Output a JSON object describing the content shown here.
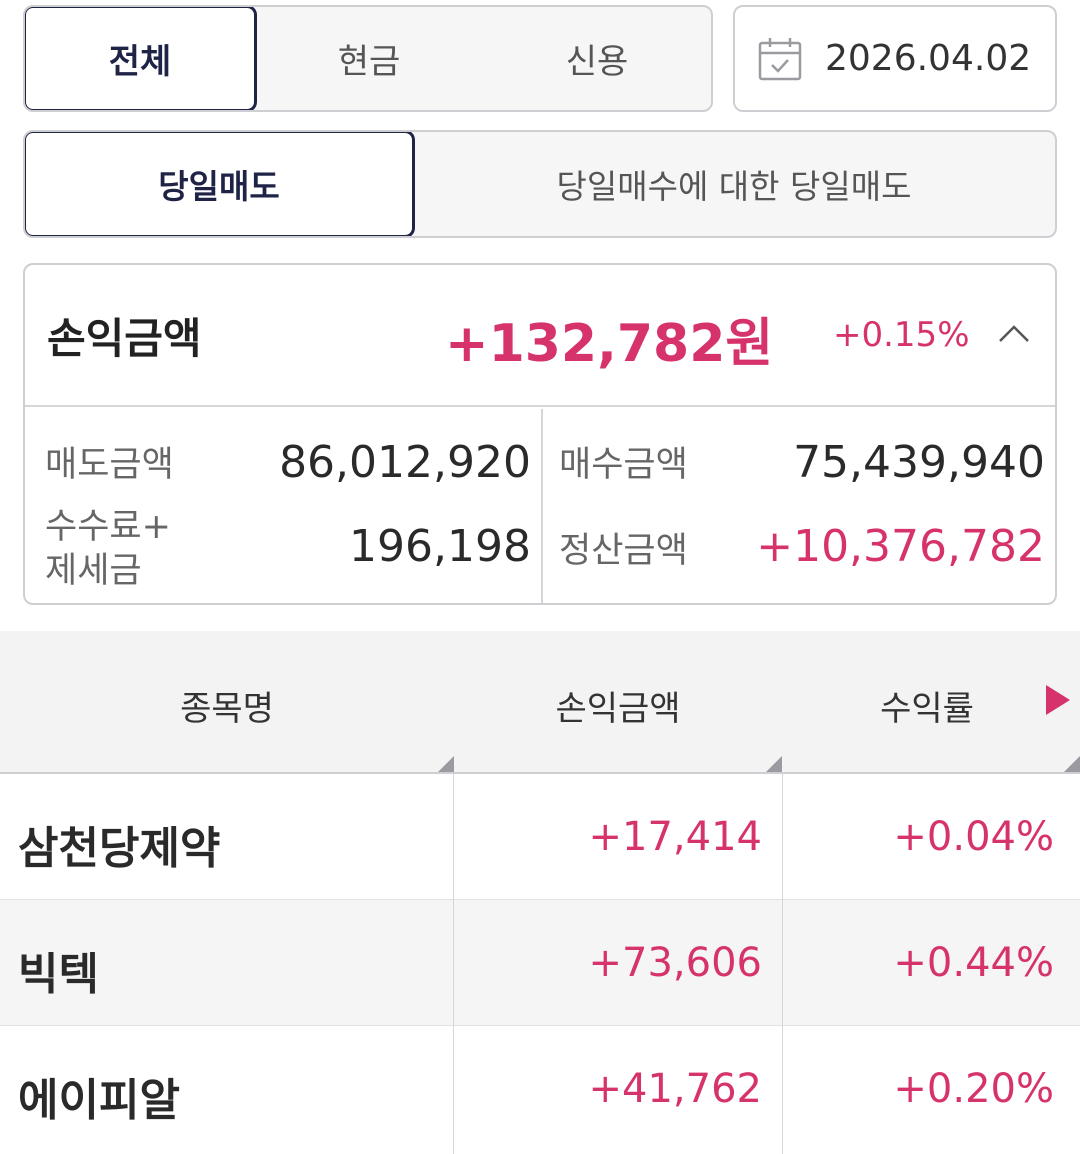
{
  "filter_tabs": {
    "items": [
      "전체",
      "현금",
      "신용"
    ],
    "active": "전체"
  },
  "date": {
    "value": "2026.04.02",
    "icon": "calendar-icon"
  },
  "trade_tabs": {
    "items": [
      "당일매도",
      "당일매수에 대한 당일매도"
    ],
    "active": "당일매도"
  },
  "summary": {
    "label": "손익금액",
    "amount": "+132,782원",
    "percent": "+0.15%",
    "collapse_icon": "chevron-up-icon",
    "sell_amount_label": "매도금액",
    "sell_amount": "86,012,920",
    "buy_amount_label": "매수금액",
    "buy_amount": "75,439,940",
    "fee_tax_label_line1": "수수료+",
    "fee_tax_label_line2": "제세금",
    "fee_tax": "196,198",
    "settlement_label": "정산금액",
    "settlement": "+10,376,782"
  },
  "table": {
    "columns": [
      "종목명",
      "손익금액",
      "수익률"
    ],
    "scroll_icon": "triangle-right-icon",
    "rows": [
      {
        "name": "삼천당제약",
        "pl": "+17,414",
        "rate": "+0.04%"
      },
      {
        "name": "빅텍",
        "pl": "+73,606",
        "rate": "+0.44%"
      },
      {
        "name": "에이피알",
        "pl": "+41,762",
        "rate": "+0.20%"
      }
    ]
  },
  "colors": {
    "accent": "#d6336c",
    "navy": "#1f2346",
    "border": "#cfcfd3"
  }
}
